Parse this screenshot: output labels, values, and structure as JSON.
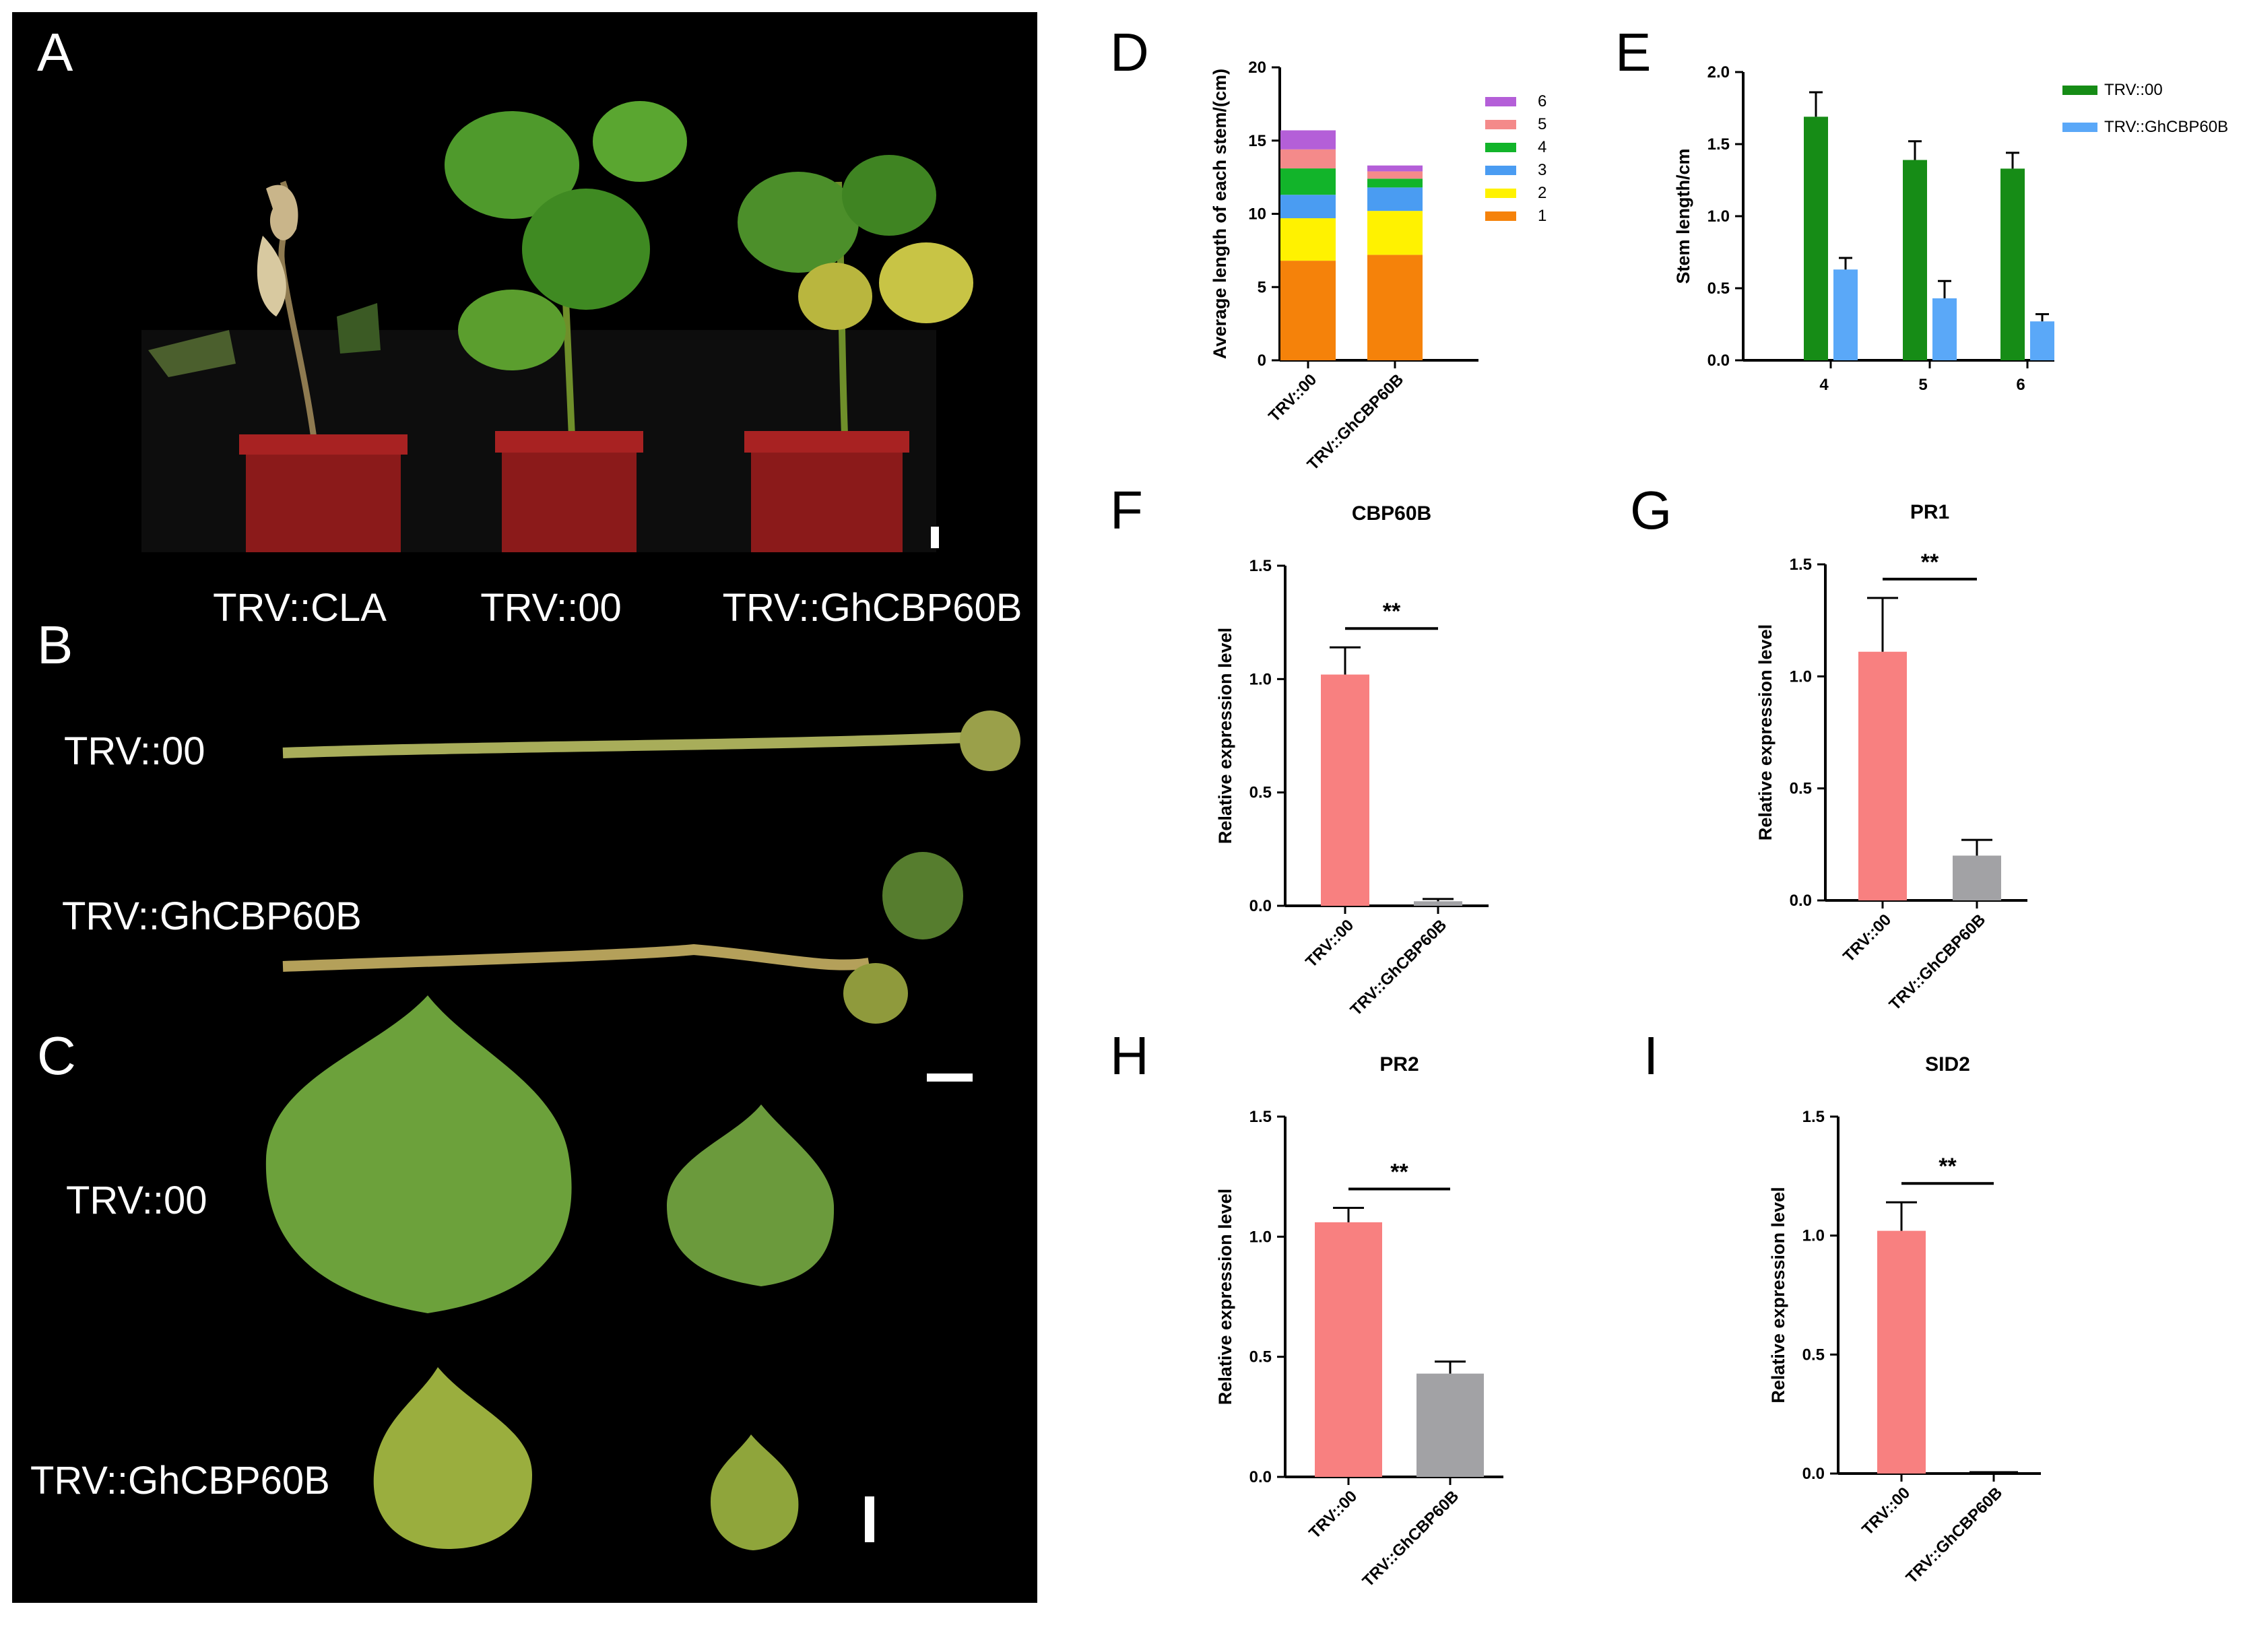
{
  "photo_panels": {
    "A": {
      "letter": "A",
      "labels": [
        "TRV::CLA",
        "TRV::00",
        "TRV::GhCBP60B"
      ]
    },
    "B": {
      "letter": "B",
      "labels": [
        "TRV::00",
        "TRV::GhCBP60B"
      ]
    },
    "C": {
      "letter": "C",
      "labels": [
        "TRV::00",
        "TRV::GhCBP60B"
      ]
    }
  },
  "colors": {
    "seg1": "#f5820a",
    "seg2": "#fff200",
    "seg3": "#4a9cf2",
    "seg4": "#12b42a",
    "seg5": "#f48a8a",
    "seg6": "#b45fd8",
    "trv00_green": "#168c16",
    "ghcbp_blue": "#5aa8f8",
    "expr_pink": "#f88080",
    "expr_gray": "#a2a2a5"
  },
  "chart_data": [
    {
      "panel": "D",
      "type": "bar",
      "stacked": true,
      "categories": [
        "TRV::00",
        "TRV::GhCBP60B"
      ],
      "series": [
        {
          "name": "1",
          "values": [
            6.8,
            7.2
          ]
        },
        {
          "name": "2",
          "values": [
            2.9,
            3.0
          ]
        },
        {
          "name": "3",
          "values": [
            1.6,
            1.6
          ]
        },
        {
          "name": "4",
          "values": [
            1.8,
            0.6
          ]
        },
        {
          "name": "5",
          "values": [
            1.3,
            0.5
          ]
        },
        {
          "name": "6",
          "values": [
            1.3,
            0.4
          ]
        }
      ],
      "title": "",
      "xlabel": "",
      "ylabel": "Average length of each stem/(cm)",
      "ylim": [
        0,
        20
      ],
      "yticks": [
        0,
        5,
        10,
        15,
        20
      ],
      "legend": "right",
      "legend_order": [
        "6",
        "5",
        "4",
        "3",
        "2",
        "1"
      ]
    },
    {
      "panel": "E",
      "type": "bar",
      "categories": [
        "4",
        "5",
        "6"
      ],
      "series": [
        {
          "name": "TRV::00",
          "values": [
            1.69,
            1.39,
            1.33
          ],
          "errors": [
            0.17,
            0.13,
            0.11
          ]
        },
        {
          "name": "TRV::GhCBP60B",
          "values": [
            0.63,
            0.43,
            0.27
          ],
          "errors": [
            0.08,
            0.12,
            0.05
          ]
        }
      ],
      "title": "",
      "xlabel": "",
      "ylabel": "Stem length/cm",
      "ylim": [
        0,
        2.0
      ],
      "yticks": [
        "0.0",
        "0.5",
        "1.0",
        "1.5",
        "2.0"
      ],
      "legend": "top-right"
    },
    {
      "panel": "F",
      "type": "bar",
      "title": "CBP60B",
      "categories": [
        "TRV::00",
        "TRV::GhCBP60B"
      ],
      "values": [
        1.02,
        0.02
      ],
      "errors": [
        0.12,
        0.01
      ],
      "ylabel": "Relative expression level",
      "ylim": [
        0,
        1.5
      ],
      "yticks": [
        "0.0",
        "0.5",
        "1.0",
        "1.5"
      ],
      "significance": "**"
    },
    {
      "panel": "G",
      "type": "bar",
      "title": "PR1",
      "categories": [
        "TRV::00",
        "TRV::GhCBP60B"
      ],
      "values": [
        1.11,
        0.2
      ],
      "errors": [
        0.24,
        0.07
      ],
      "ylabel": "Relative expression level",
      "ylim": [
        0,
        1.5
      ],
      "yticks": [
        "0.0",
        "0.5",
        "1.0",
        "1.5"
      ],
      "significance": "**"
    },
    {
      "panel": "H",
      "type": "bar",
      "title": "PR2",
      "categories": [
        "TRV::00",
        "TRV::GhCBP60B"
      ],
      "values": [
        1.06,
        0.43
      ],
      "errors": [
        0.06,
        0.05
      ],
      "ylabel": "Relative expression level",
      "ylim": [
        0,
        1.5
      ],
      "yticks": [
        "0.0",
        "0.5",
        "1.0",
        "1.5"
      ],
      "significance": "**"
    },
    {
      "panel": "I",
      "type": "bar",
      "title": "SID2",
      "categories": [
        "TRV::00",
        "TRV::GhCBP60B"
      ],
      "values": [
        1.02,
        0.0
      ],
      "errors": [
        0.12,
        0.0
      ],
      "ylabel": "Relative expression level",
      "ylim": [
        0,
        1.5
      ],
      "yticks": [
        "0.0",
        "0.5",
        "1.0",
        "1.5"
      ],
      "significance": "**"
    }
  ]
}
